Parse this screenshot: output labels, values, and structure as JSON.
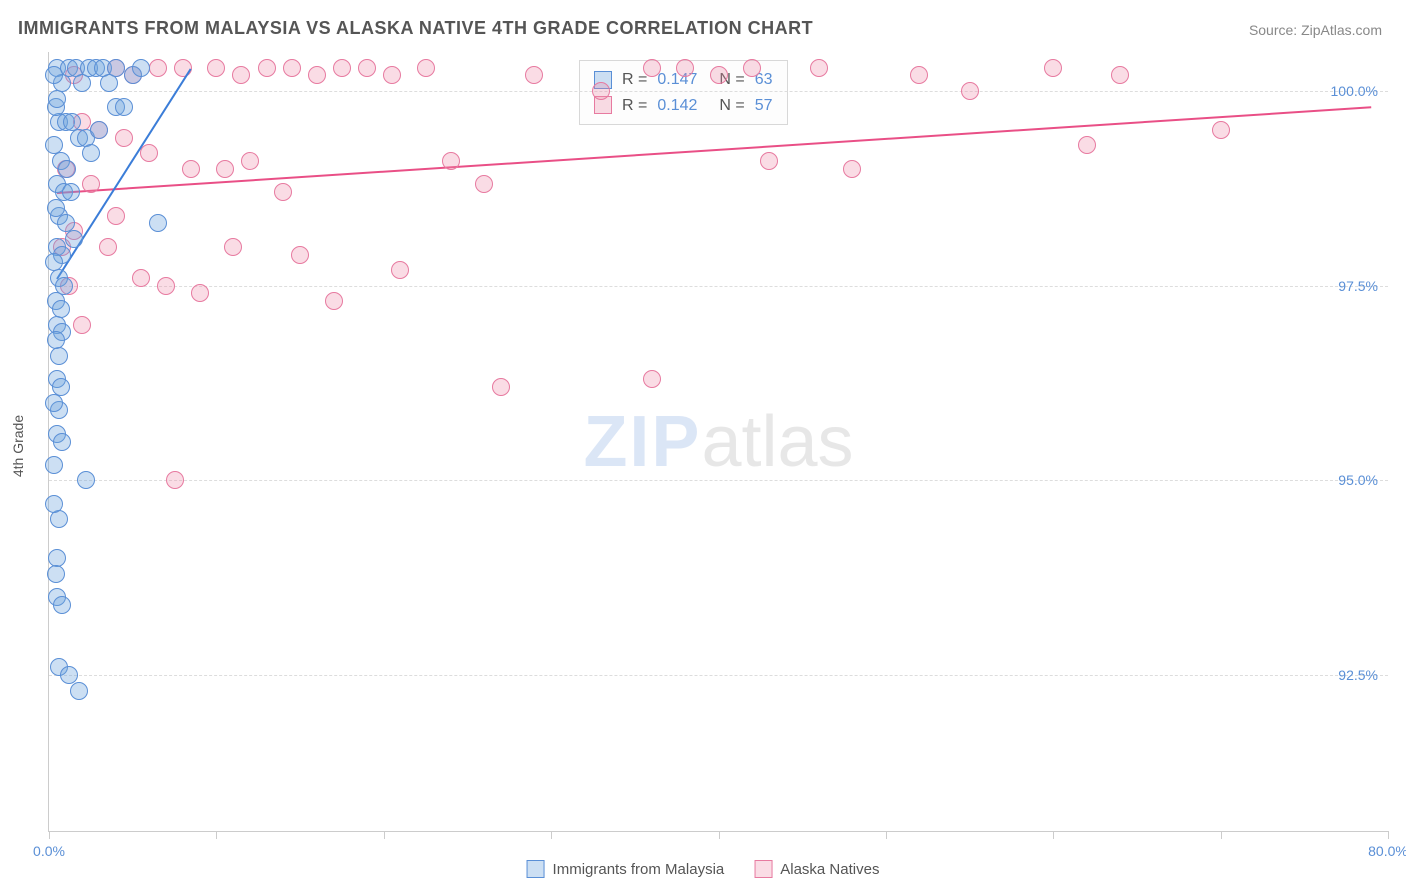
{
  "title": "IMMIGRANTS FROM MALAYSIA VS ALASKA NATIVE 4TH GRADE CORRELATION CHART",
  "source_label": "Source:",
  "source_value": "ZipAtlas.com",
  "ylabel": "4th Grade",
  "watermark_a": "ZIP",
  "watermark_b": "atlas",
  "chart": {
    "type": "scatter",
    "background_color": "#ffffff",
    "grid_color": "#dddddd",
    "axis_color": "#cccccc",
    "xlim": [
      0,
      80
    ],
    "ylim": [
      90.5,
      100.5
    ],
    "yticks": [
      {
        "v": 92.5,
        "label": "92.5%"
      },
      {
        "v": 95.0,
        "label": "95.0%"
      },
      {
        "v": 97.5,
        "label": "97.5%"
      },
      {
        "v": 100.0,
        "label": "100.0%"
      }
    ],
    "xticks": [
      {
        "v": 0,
        "label": "0.0%"
      },
      {
        "v": 10,
        "label": ""
      },
      {
        "v": 20,
        "label": ""
      },
      {
        "v": 30,
        "label": ""
      },
      {
        "v": 40,
        "label": ""
      },
      {
        "v": 50,
        "label": ""
      },
      {
        "v": 60,
        "label": ""
      },
      {
        "v": 70,
        "label": ""
      },
      {
        "v": 80,
        "label": "80.0%"
      }
    ],
    "tick_label_color": "#5a8fd6",
    "tick_label_fontsize": 14,
    "marker_radius": 9,
    "marker_stroke_width": 1.5,
    "series": [
      {
        "name": "Immigrants from Malaysia",
        "fill": "rgba(108,162,220,0.35)",
        "stroke": "#5a8fd6",
        "line_color": "#3b7dd8",
        "trend": {
          "x1": 0.5,
          "y1": 97.6,
          "x2": 8.5,
          "y2": 100.3
        },
        "R": "0.147",
        "N": "63",
        "points": [
          [
            0.5,
            100.3
          ],
          [
            0.8,
            100.1
          ],
          [
            1.2,
            100.3
          ],
          [
            1.6,
            100.3
          ],
          [
            2.0,
            100.1
          ],
          [
            2.4,
            100.3
          ],
          [
            2.8,
            100.3
          ],
          [
            3.2,
            100.3
          ],
          [
            3.6,
            100.1
          ],
          [
            4.0,
            100.3
          ],
          [
            0.6,
            99.6
          ],
          [
            1.0,
            99.6
          ],
          [
            1.4,
            99.6
          ],
          [
            1.8,
            99.4
          ],
          [
            2.2,
            99.4
          ],
          [
            0.7,
            99.1
          ],
          [
            1.1,
            99.0
          ],
          [
            0.5,
            98.8
          ],
          [
            0.9,
            98.7
          ],
          [
            1.3,
            98.7
          ],
          [
            0.6,
            98.4
          ],
          [
            1.0,
            98.3
          ],
          [
            0.5,
            98.0
          ],
          [
            0.8,
            97.9
          ],
          [
            0.6,
            97.6
          ],
          [
            0.9,
            97.5
          ],
          [
            0.4,
            97.3
          ],
          [
            0.7,
            97.2
          ],
          [
            0.5,
            97.0
          ],
          [
            0.8,
            96.9
          ],
          [
            0.6,
            96.6
          ],
          [
            0.5,
            96.3
          ],
          [
            0.7,
            96.2
          ],
          [
            0.6,
            95.9
          ],
          [
            0.5,
            95.6
          ],
          [
            0.8,
            95.5
          ],
          [
            2.2,
            95.0
          ],
          [
            0.6,
            94.5
          ],
          [
            0.5,
            93.5
          ],
          [
            0.8,
            93.4
          ],
          [
            0.6,
            92.6
          ],
          [
            1.2,
            92.5
          ],
          [
            1.8,
            92.3
          ],
          [
            4.0,
            99.8
          ],
          [
            4.5,
            99.8
          ],
          [
            3.0,
            99.5
          ],
          [
            2.5,
            99.2
          ],
          [
            1.5,
            98.1
          ],
          [
            0.4,
            99.8
          ],
          [
            0.3,
            100.2
          ],
          [
            5.0,
            100.2
          ],
          [
            5.5,
            100.3
          ],
          [
            0.5,
            99.9
          ],
          [
            0.3,
            99.3
          ],
          [
            0.4,
            98.5
          ],
          [
            0.3,
            97.8
          ],
          [
            0.4,
            96.8
          ],
          [
            0.3,
            96.0
          ],
          [
            0.5,
            94.0
          ],
          [
            0.3,
            94.7
          ],
          [
            0.4,
            93.8
          ],
          [
            0.3,
            95.2
          ],
          [
            6.5,
            98.3
          ]
        ]
      },
      {
        "name": "Alaska Natives",
        "fill": "rgba(238,140,170,0.30)",
        "stroke": "#e77aa0",
        "line_color": "#e94f86",
        "trend": {
          "x1": 0.5,
          "y1": 98.7,
          "x2": 79,
          "y2": 99.8
        },
        "R": "0.142",
        "N": "57",
        "points": [
          [
            1.5,
            100.2
          ],
          [
            4.0,
            100.3
          ],
          [
            5.0,
            100.2
          ],
          [
            6.5,
            100.3
          ],
          [
            8.0,
            100.3
          ],
          [
            10.0,
            100.3
          ],
          [
            11.5,
            100.2
          ],
          [
            13.0,
            100.3
          ],
          [
            14.5,
            100.3
          ],
          [
            16.0,
            100.2
          ],
          [
            17.5,
            100.3
          ],
          [
            19.0,
            100.3
          ],
          [
            20.5,
            100.2
          ],
          [
            22.5,
            100.3
          ],
          [
            29.0,
            100.2
          ],
          [
            33.0,
            100.0
          ],
          [
            36.0,
            100.3
          ],
          [
            38.0,
            100.3
          ],
          [
            40.0,
            100.2
          ],
          [
            42.0,
            100.3
          ],
          [
            46.0,
            100.3
          ],
          [
            52.0,
            100.2
          ],
          [
            60.0,
            100.3
          ],
          [
            62.0,
            99.3
          ],
          [
            64.0,
            100.2
          ],
          [
            2.0,
            99.6
          ],
          [
            3.0,
            99.5
          ],
          [
            4.5,
            99.4
          ],
          [
            6.0,
            99.2
          ],
          [
            8.5,
            99.0
          ],
          [
            10.5,
            99.0
          ],
          [
            12.0,
            99.1
          ],
          [
            14.0,
            98.7
          ],
          [
            26.0,
            98.8
          ],
          [
            2.5,
            98.8
          ],
          [
            4.0,
            98.4
          ],
          [
            1.5,
            98.2
          ],
          [
            3.5,
            98.0
          ],
          [
            5.5,
            97.6
          ],
          [
            7.0,
            97.5
          ],
          [
            9.0,
            97.4
          ],
          [
            11.0,
            98.0
          ],
          [
            15.0,
            97.9
          ],
          [
            17.0,
            97.3
          ],
          [
            21.0,
            97.7
          ],
          [
            27.0,
            96.2
          ],
          [
            36.0,
            96.3
          ],
          [
            7.5,
            95.0
          ],
          [
            1.0,
            99.0
          ],
          [
            2.0,
            97.0
          ],
          [
            0.8,
            98.0
          ],
          [
            1.2,
            97.5
          ],
          [
            48.0,
            99.0
          ],
          [
            55.0,
            100.0
          ],
          [
            70.0,
            99.5
          ],
          [
            43.0,
            99.1
          ],
          [
            24.0,
            99.1
          ]
        ]
      }
    ],
    "stats_legend": {
      "rows": [
        {
          "series": 0,
          "R_label": "R =",
          "N_label": "N ="
        },
        {
          "series": 1,
          "R_label": "R =",
          "N_label": "N ="
        }
      ]
    }
  }
}
